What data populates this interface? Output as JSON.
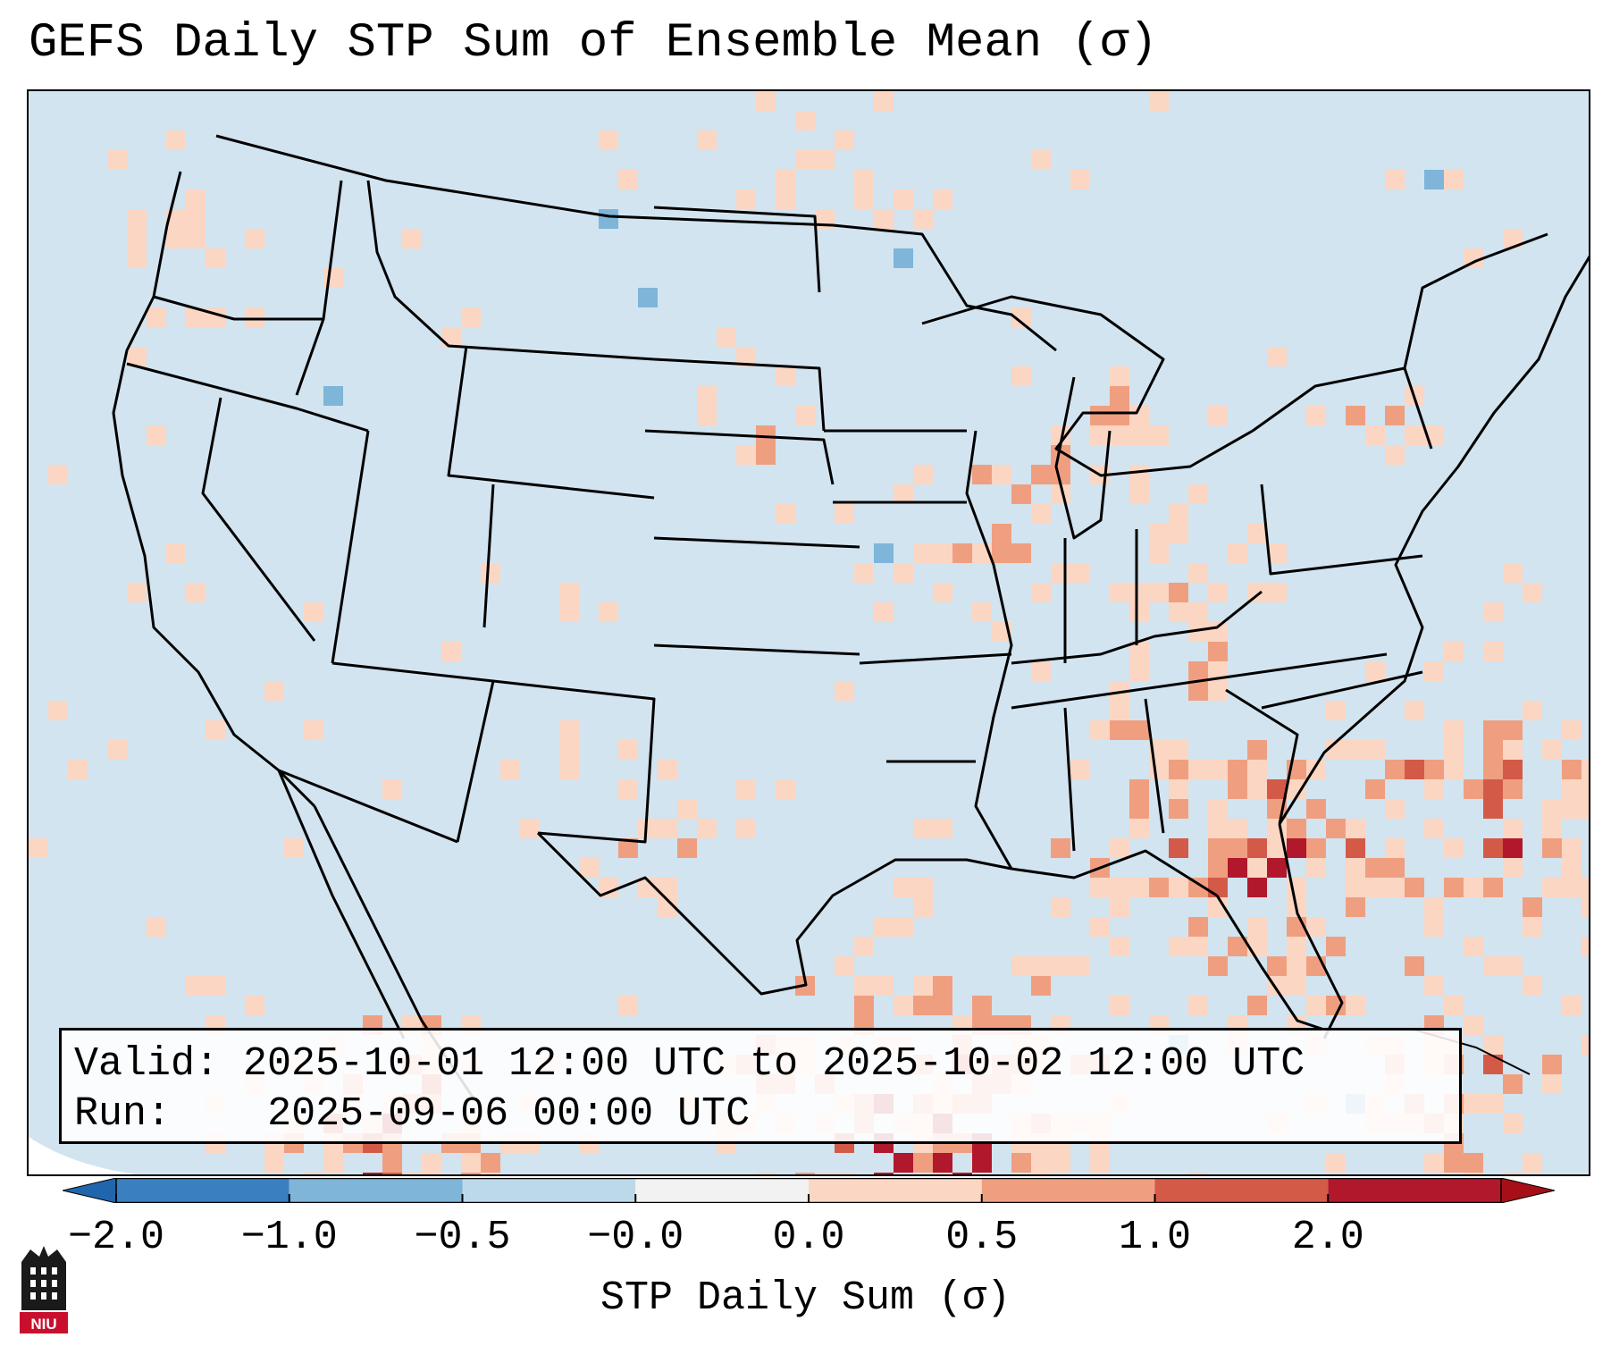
{
  "title": "GEFS Daily STP Sum of Ensemble Mean (σ)",
  "info_box": {
    "valid_label": "Valid:",
    "valid_value": "2025-10-01 12:00 UTC to 2025-10-02 12:00 UTC",
    "run_label": "Run:",
    "run_value": "2025-09-06 00:00 UTC"
  },
  "colorbar": {
    "label": "STP Daily Sum (σ)",
    "ticks": [
      "−2.0",
      "−1.0",
      "−0.5",
      "−0.0",
      "0.0",
      "0.5",
      "1.0",
      "2.0"
    ],
    "colors": [
      "#3a7fbf",
      "#7eb5d9",
      "#bcd9ea",
      "#f2f2f2",
      "#fbd6c3",
      "#ef9f80",
      "#d45a48",
      "#b2182b"
    ]
  },
  "logo": {
    "text": "NIU",
    "icon": "niu-logo-icon"
  },
  "map": {
    "background_color": "#d2e4ef",
    "outside_color": "#ffffff"
  }
}
